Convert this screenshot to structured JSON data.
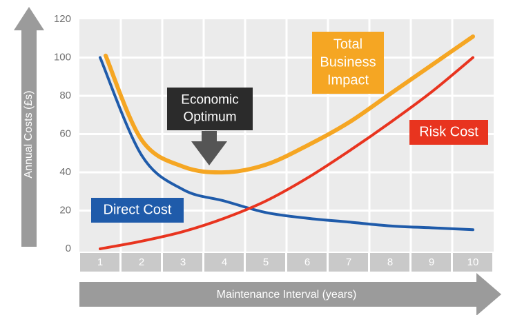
{
  "chart_data": {
    "type": "line",
    "xlabel": "Maintenance Interval (years)",
    "ylabel": "Annual Costs (£s)",
    "x": [
      1,
      2,
      3,
      4,
      5,
      6,
      7,
      8,
      9,
      10
    ],
    "x_ticks": [
      "1",
      "2",
      "3",
      "4",
      "5",
      "6",
      "7",
      "8",
      "9",
      "10"
    ],
    "y_ticks": [
      "0",
      "20",
      "40",
      "60",
      "80",
      "100",
      "120"
    ],
    "xlim": [
      1,
      10
    ],
    "ylim": [
      0,
      120
    ],
    "grid": true,
    "series": [
      {
        "name": "Total Business Impact",
        "label_lines": [
          "Total",
          "Business",
          "Impact"
        ],
        "color": "#F5A623",
        "values": [
          101,
          57,
          43,
          40,
          44,
          54,
          66,
          81,
          96,
          111
        ]
      },
      {
        "name": "Direct Cost",
        "label_lines": [
          "Direct Cost"
        ],
        "color": "#1F5BAA",
        "values": [
          100,
          49,
          31,
          25,
          19,
          16,
          14,
          12,
          11,
          10
        ]
      },
      {
        "name": "Risk Cost",
        "label_lines": [
          "Risk Cost"
        ],
        "color": "#E8341F",
        "values": [
          0,
          4,
          9,
          16,
          25,
          37,
          51,
          66,
          82,
          100
        ]
      }
    ],
    "annotations": [
      {
        "name": "Economic Optimum",
        "label_lines": [
          "Economic",
          "Optimum"
        ],
        "x": 4,
        "y": 40
      }
    ]
  },
  "colors": {
    "plot_bg": "#EBEBEB",
    "grid": "#FFFFFF",
    "tick_bg": "#C9C9C9",
    "arrow": "#9B9B9B",
    "tick_text": "#FFFFFF",
    "axis_text": "#6F6F6F",
    "callout_bg": "#2B2B2B",
    "callout_arrow": "#555555"
  }
}
